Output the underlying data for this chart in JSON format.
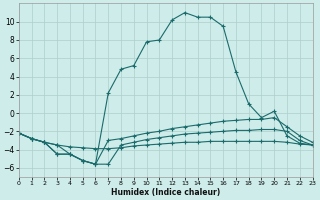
{
  "title": "",
  "xlabel": "Humidex (Indice chaleur)",
  "bg_color": "#ceecea",
  "grid_color": "#aecfcc",
  "line_color": "#1a6b6b",
  "xlim": [
    0,
    23
  ],
  "ylim": [
    -7,
    12
  ],
  "xticks": [
    0,
    1,
    2,
    3,
    4,
    5,
    6,
    7,
    8,
    9,
    10,
    11,
    12,
    13,
    14,
    15,
    16,
    17,
    18,
    19,
    20,
    21,
    22,
    23
  ],
  "yticks": [
    -6,
    -4,
    -2,
    0,
    2,
    4,
    6,
    8,
    10
  ],
  "line1_x": [
    0,
    1,
    2,
    3,
    4,
    5,
    6,
    7,
    8,
    9,
    10,
    11,
    12,
    13,
    14,
    15,
    16,
    17,
    18,
    19,
    20,
    21,
    22,
    23
  ],
  "line1_y": [
    -2.2,
    -2.8,
    -3.2,
    -3.5,
    -3.7,
    -3.8,
    -3.9,
    -3.9,
    -3.8,
    -3.6,
    -3.5,
    -3.4,
    -3.3,
    -3.2,
    -3.2,
    -3.1,
    -3.1,
    -3.1,
    -3.1,
    -3.1,
    -3.1,
    -3.2,
    -3.4,
    -3.5
  ],
  "line2_x": [
    0,
    1,
    2,
    3,
    4,
    5,
    6,
    7,
    8,
    9,
    10,
    11,
    12,
    13,
    14,
    15,
    16,
    17,
    18,
    19,
    20,
    21,
    22,
    23
  ],
  "line2_y": [
    -2.2,
    -2.8,
    -3.2,
    -3.5,
    -4.5,
    -5.2,
    -5.6,
    -5.6,
    -3.5,
    -3.2,
    -2.9,
    -2.7,
    -2.5,
    -2.3,
    -2.2,
    -2.1,
    -2.0,
    -1.9,
    -1.9,
    -1.8,
    -1.8,
    -2.0,
    -3.0,
    -3.5
  ],
  "line3_x": [
    0,
    1,
    2,
    3,
    4,
    5,
    6,
    7,
    8,
    9,
    10,
    11,
    12,
    13,
    14,
    15,
    16,
    17,
    18,
    19,
    20,
    21,
    22,
    23
  ],
  "line3_y": [
    -2.2,
    -2.8,
    -3.2,
    -4.5,
    -4.5,
    -5.2,
    -5.6,
    -3.0,
    -2.8,
    -2.5,
    -2.2,
    -2.0,
    -1.7,
    -1.5,
    -1.3,
    -1.1,
    -0.9,
    -0.8,
    -0.7,
    -0.7,
    -0.5,
    -1.5,
    -2.5,
    -3.2
  ],
  "line4_x": [
    0,
    1,
    2,
    3,
    4,
    5,
    6,
    7,
    8,
    9,
    10,
    11,
    12,
    13,
    14,
    15,
    16,
    17,
    18,
    19,
    20,
    21,
    22,
    23
  ],
  "line4_y": [
    -2.2,
    -2.8,
    -3.2,
    -4.5,
    -4.5,
    -5.2,
    -5.6,
    2.2,
    4.8,
    5.2,
    7.8,
    8.0,
    10.2,
    11.0,
    10.5,
    10.5,
    9.5,
    4.5,
    1.0,
    -0.5,
    0.2,
    -2.5,
    -3.3,
    -3.5
  ]
}
